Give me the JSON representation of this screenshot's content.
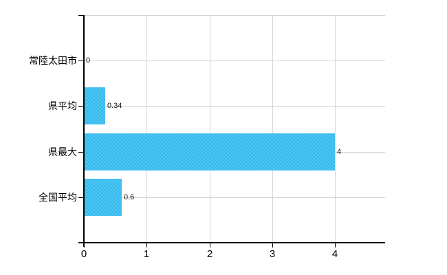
{
  "chart_data": {
    "type": "bar",
    "orientation": "horizontal",
    "title": "",
    "categories": [
      "常陸太田市",
      "県平均",
      "県最大",
      "全国平均"
    ],
    "values": [
      0,
      0.34,
      4,
      0.6
    ],
    "value_labels": [
      "0",
      "0.34",
      "4",
      "0.6"
    ],
    "x_tick_labels": [
      "0",
      "1",
      "2",
      "3",
      "4"
    ],
    "x_tick_values": [
      0,
      1,
      2,
      3,
      4
    ],
    "xlim": [
      0,
      4.8
    ],
    "grid": true,
    "legend": false,
    "colors": {
      "bar": "#41c0f0",
      "bar_dither": [
        "#2fb3e9",
        "#55ccf7"
      ],
      "h_gridline": "#ccd7cc",
      "v_gridline": "#d5d1d8",
      "axis": "#000000",
      "label_text": "#000000",
      "background": "#ffffff"
    }
  }
}
